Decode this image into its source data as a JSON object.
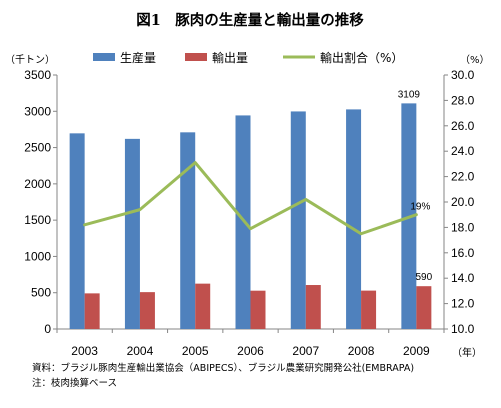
{
  "chart_data": {
    "type": "bar",
    "title": "図1　豚肉の生産量と輸出量の推移",
    "left_unit": "（千トン）",
    "right_unit": "（%）",
    "x_unit": "（年）",
    "categories": [
      "2003",
      "2004",
      "2005",
      "2006",
      "2007",
      "2008",
      "2009"
    ],
    "series": [
      {
        "name": "生産量",
        "kind": "bar",
        "axis": "left",
        "color": "#4f81bd",
        "values": [
          2696,
          2620,
          2710,
          2943,
          2998,
          3026,
          3109
        ]
      },
      {
        "name": "輸出量",
        "kind": "bar",
        "axis": "left",
        "color": "#c0504d",
        "values": [
          491,
          508,
          625,
          528,
          606,
          529,
          590
        ]
      },
      {
        "name": "輸出割合（%）",
        "kind": "line",
        "axis": "right",
        "color": "#9bbb59",
        "values": [
          18.2,
          19.4,
          23.1,
          17.9,
          20.2,
          17.5,
          19.0
        ]
      }
    ],
    "ylim_left": [
      0,
      3500
    ],
    "ylim_right": [
      10.0,
      30.0
    ],
    "left_ticks": [
      0,
      500,
      1000,
      1500,
      2000,
      2500,
      3000,
      3500
    ],
    "right_ticks": [
      "10.0",
      "12.0",
      "14.0",
      "16.0",
      "18.0",
      "20.0",
      "22.0",
      "24.0",
      "26.0",
      "28.0",
      "30.0"
    ],
    "data_labels": [
      {
        "series": "生産量",
        "index": 6,
        "text": "3109"
      },
      {
        "series": "輸出量",
        "index": 6,
        "text": "590"
      },
      {
        "series": "輸出割合（%）",
        "index": 6,
        "text": "19%"
      }
    ],
    "legend_position": "top",
    "grid": false
  },
  "notes": [
    "資料：ブラジル豚肉生産輸出業協会（ABIPECS）、ブラジル農業研究開発公社(EMBRAPA)",
    "注：枝肉換算ベース"
  ]
}
